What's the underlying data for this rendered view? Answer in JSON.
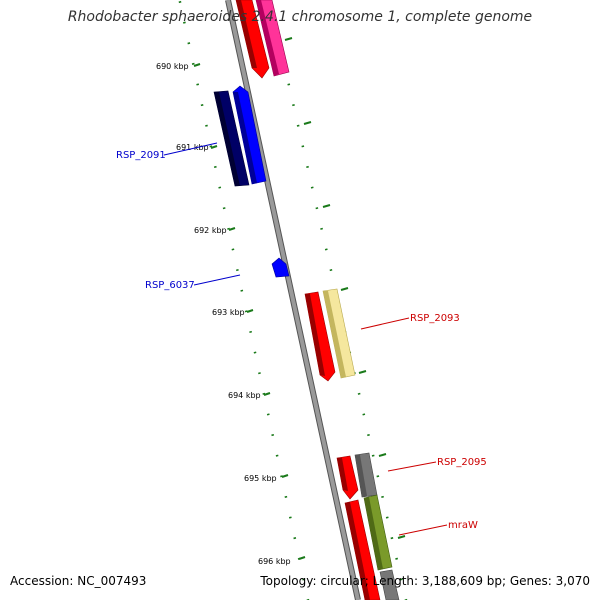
{
  "title": "Rhodobacter sphaeroides 2.4.1 chromosome 1, complete genome",
  "footer": {
    "accession_prefix": "Accession:",
    "accession": "NC_007493",
    "topology_text": "Topology: circular; Length: 3,188,609 bp; Genes: 3,070"
  },
  "colors": {
    "backbone": "#808080",
    "tick": "#1a7a1a",
    "label_blue": "#0000cc",
    "label_red": "#cc0000"
  },
  "ticks": [
    {
      "label": "690 kbp"
    },
    {
      "label": "691 kbp"
    },
    {
      "label": "692 kbp"
    },
    {
      "label": "693 kbp"
    },
    {
      "label": "694 kbp"
    },
    {
      "label": "695 kbp"
    },
    {
      "label": "696 kbp"
    }
  ],
  "genes": [
    {
      "name": "RSP_2091",
      "labeled": true,
      "label_color": "blue"
    },
    {
      "name": "RSP_6037",
      "labeled": true,
      "label_color": "blue"
    },
    {
      "name": "RSP_2093",
      "labeled": true,
      "label_color": "red"
    },
    {
      "name": "RSP_2095",
      "labeled": true,
      "label_color": "red"
    },
    {
      "name": "mraW",
      "labeled": true,
      "label_color": "red"
    }
  ]
}
